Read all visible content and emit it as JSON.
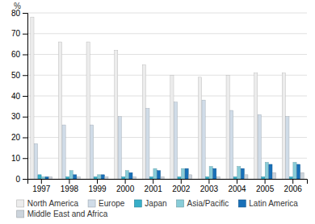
{
  "chart_data": {
    "type": "bar",
    "y_label": "%",
    "categories": [
      "1997",
      "1998",
      "1999",
      "2000",
      "2001",
      "2002",
      "2003",
      "2004",
      "2005",
      "2006"
    ],
    "series": [
      {
        "name": "North America",
        "color": "#ececec",
        "values": [
          78,
          66,
          66,
          62,
          55,
          50,
          49,
          50,
          51,
          51
        ]
      },
      {
        "name": "Europe",
        "color": "#d0dce8",
        "values": [
          17,
          26,
          26,
          30,
          34,
          37,
          38,
          33,
          31,
          30
        ]
      },
      {
        "name": "Japan",
        "color": "#38aec8",
        "values": [
          2,
          1,
          1,
          1,
          1,
          1,
          1,
          1,
          1,
          1
        ]
      },
      {
        "name": "Asia/Pacific",
        "color": "#88ccd8",
        "values": [
          1,
          4,
          2,
          4,
          5,
          5,
          6,
          6,
          8,
          8
        ]
      },
      {
        "name": "Latin America",
        "color": "#1870b8",
        "values": [
          1,
          2,
          2,
          3,
          4,
          5,
          5,
          5,
          7,
          7
        ]
      },
      {
        "name": "Middle East and Africa",
        "color": "#ccd4dc",
        "values": [
          1,
          1,
          1,
          1,
          1,
          2,
          1,
          2,
          3,
          3
        ]
      }
    ],
    "ylim": [
      0,
      80
    ],
    "yticks": [
      0,
      10,
      20,
      30,
      40,
      50,
      60,
      70,
      80
    ],
    "grid": true,
    "legend": "bottom"
  }
}
